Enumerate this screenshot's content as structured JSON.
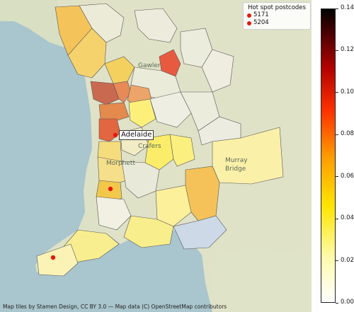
{
  "legend": {
    "title": "Hot spot postcodes",
    "items": [
      "5171",
      "5204"
    ]
  },
  "colorbar": {
    "min": 0.0,
    "max": 0.14,
    "ticks": [
      "0.00",
      "0.02",
      "0.04",
      "0.06",
      "0.08",
      "0.10",
      "0.12",
      "0.14"
    ],
    "colormap": "hot_r"
  },
  "places": {
    "gawler": "Gawler",
    "adelaide": "Adelaide",
    "crafers": "Crafers",
    "murray_bridge_1": "Murray",
    "murray_bridge_2": "Bridge",
    "morphett": "Morphett"
  },
  "attribution": "Map tiles by Stamen Design, CC BY 3.0 — Map data (C) OpenStreetMap contributors",
  "colors": {
    "sea": "#a8c6cf",
    "land": "#dfe3c9",
    "hotspot": "#e8170f"
  }
}
